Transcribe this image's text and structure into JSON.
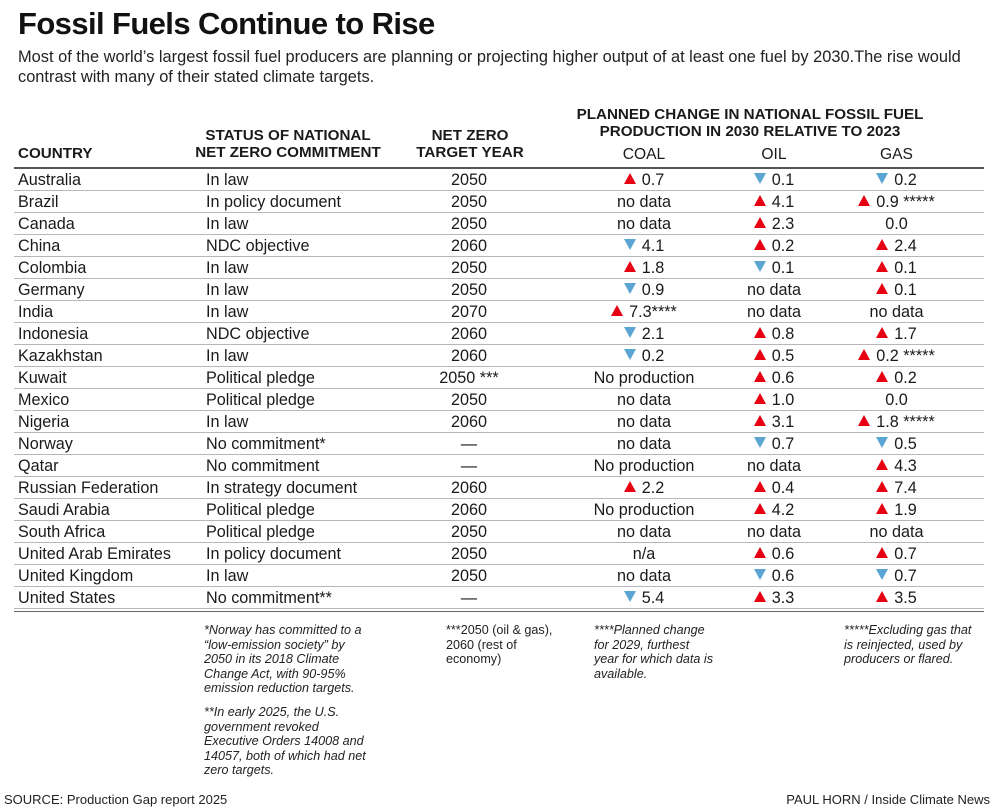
{
  "title": "Fossil Fuels Continue to Rise",
  "subtitle": "Most of the world’s largest fossil fuel producers are planning or projecting higher output of at least one fuel by 2030.The rise would contrast with many of their stated climate targets.",
  "headers": {
    "country": "COUNTRY",
    "status_line1": "STATUS OF NATIONAL",
    "status_line2": "NET ZERO COMMITMENT",
    "year_line1": "NET ZERO",
    "year_line2": "TARGET YEAR",
    "planned_line1": "PLANNED CHANGE IN NATIONAL FOSSIL FUEL",
    "planned_line2": "PRODUCTION IN 2030 RELATIVE TO 2023",
    "coal": "COAL",
    "oil": "OIL",
    "gas": "GAS"
  },
  "colors": {
    "increase": "#e60012",
    "decrease": "#5aa5d4"
  },
  "chart_data": {
    "type": "table",
    "rows": [
      {
        "country": "Australia",
        "status": "In law",
        "year": "2050",
        "coal": {
          "dir": "up",
          "value": "0.7",
          "suffix": ""
        },
        "oil": {
          "dir": "down",
          "value": "0.1",
          "suffix": ""
        },
        "gas": {
          "dir": "down",
          "value": "0.2",
          "suffix": ""
        }
      },
      {
        "country": "Brazil",
        "status": "In policy document",
        "year": "2050",
        "coal": {
          "dir": "none",
          "value": "no data",
          "suffix": ""
        },
        "oil": {
          "dir": "up",
          "value": "4.1",
          "suffix": ""
        },
        "gas": {
          "dir": "up",
          "value": "0.9",
          "suffix": " *****"
        }
      },
      {
        "country": "Canada",
        "status": "In law",
        "year": "2050",
        "coal": {
          "dir": "none",
          "value": "no data",
          "suffix": ""
        },
        "oil": {
          "dir": "up",
          "value": "2.3",
          "suffix": ""
        },
        "gas": {
          "dir": "none",
          "value": "0.0",
          "suffix": ""
        }
      },
      {
        "country": "China",
        "status": "NDC objective",
        "year": "2060",
        "coal": {
          "dir": "down",
          "value": "4.1",
          "suffix": ""
        },
        "oil": {
          "dir": "up",
          "value": "0.2",
          "suffix": ""
        },
        "gas": {
          "dir": "up",
          "value": "2.4",
          "suffix": ""
        }
      },
      {
        "country": "Colombia",
        "status": "In law",
        "year": "2050",
        "coal": {
          "dir": "up",
          "value": "1.8",
          "suffix": ""
        },
        "oil": {
          "dir": "down",
          "value": "0.1",
          "suffix": ""
        },
        "gas": {
          "dir": "up",
          "value": "0.1",
          "suffix": ""
        }
      },
      {
        "country": "Germany",
        "status": "In law",
        "year": "2050",
        "coal": {
          "dir": "down",
          "value": "0.9",
          "suffix": ""
        },
        "oil": {
          "dir": "none",
          "value": "no data",
          "suffix": ""
        },
        "gas": {
          "dir": "up",
          "value": "0.1",
          "suffix": ""
        }
      },
      {
        "country": "India",
        "status": "In law",
        "year": "2070",
        "coal": {
          "dir": "up",
          "value": "7.3",
          "suffix": "****"
        },
        "oil": {
          "dir": "none",
          "value": "no data",
          "suffix": ""
        },
        "gas": {
          "dir": "none",
          "value": "no data",
          "suffix": ""
        }
      },
      {
        "country": "Indonesia",
        "status": "NDC objective",
        "year": "2060",
        "coal": {
          "dir": "down",
          "value": "2.1",
          "suffix": ""
        },
        "oil": {
          "dir": "up",
          "value": "0.8",
          "suffix": ""
        },
        "gas": {
          "dir": "up",
          "value": "1.7",
          "suffix": ""
        }
      },
      {
        "country": "Kazakhstan",
        "status": "In law",
        "year": "2060",
        "coal": {
          "dir": "down",
          "value": "0.2",
          "suffix": ""
        },
        "oil": {
          "dir": "up",
          "value": "0.5",
          "suffix": ""
        },
        "gas": {
          "dir": "up",
          "value": "0.2",
          "suffix": " *****"
        }
      },
      {
        "country": "Kuwait",
        "status": "Political pledge",
        "year": "2050 ***",
        "coal": {
          "dir": "none",
          "value": "No production",
          "suffix": ""
        },
        "oil": {
          "dir": "up",
          "value": "0.6",
          "suffix": ""
        },
        "gas": {
          "dir": "up",
          "value": "0.2",
          "suffix": ""
        }
      },
      {
        "country": "Mexico",
        "status": "Political pledge",
        "year": "2050",
        "coal": {
          "dir": "none",
          "value": "no data",
          "suffix": ""
        },
        "oil": {
          "dir": "up",
          "value": "1.0",
          "suffix": ""
        },
        "gas": {
          "dir": "none",
          "value": "0.0",
          "suffix": ""
        }
      },
      {
        "country": "Nigeria",
        "status": "In law",
        "year": "2060",
        "coal": {
          "dir": "none",
          "value": "no data",
          "suffix": ""
        },
        "oil": {
          "dir": "up",
          "value": "3.1",
          "suffix": ""
        },
        "gas": {
          "dir": "up",
          "value": "1.8",
          "suffix": " *****"
        }
      },
      {
        "country": "Norway",
        "status": "No commitment*",
        "year": "—",
        "coal": {
          "dir": "none",
          "value": "no data",
          "suffix": ""
        },
        "oil": {
          "dir": "down",
          "value": "0.7",
          "suffix": ""
        },
        "gas": {
          "dir": "down",
          "value": "0.5",
          "suffix": ""
        }
      },
      {
        "country": "Qatar",
        "status": "No commitment",
        "year": "—",
        "coal": {
          "dir": "none",
          "value": "No production",
          "suffix": ""
        },
        "oil": {
          "dir": "none",
          "value": "no data",
          "suffix": ""
        },
        "gas": {
          "dir": "up",
          "value": "4.3",
          "suffix": ""
        }
      },
      {
        "country": "Russian Federation",
        "status": "In strategy document",
        "year": "2060",
        "coal": {
          "dir": "up",
          "value": "2.2",
          "suffix": ""
        },
        "oil": {
          "dir": "up",
          "value": "0.4",
          "suffix": ""
        },
        "gas": {
          "dir": "up",
          "value": "7.4",
          "suffix": ""
        }
      },
      {
        "country": "Saudi Arabia",
        "status": "Political pledge",
        "year": "2060",
        "coal": {
          "dir": "none",
          "value": "No production",
          "suffix": ""
        },
        "oil": {
          "dir": "up",
          "value": "4.2",
          "suffix": ""
        },
        "gas": {
          "dir": "up",
          "value": "1.9",
          "suffix": ""
        }
      },
      {
        "country": "South Africa",
        "status": "Political pledge",
        "year": "2050",
        "coal": {
          "dir": "none",
          "value": "no data",
          "suffix": ""
        },
        "oil": {
          "dir": "none",
          "value": "no data",
          "suffix": ""
        },
        "gas": {
          "dir": "none",
          "value": "no data",
          "suffix": ""
        }
      },
      {
        "country": "United Arab Emirates",
        "status": "In policy document",
        "year": "2050",
        "coal": {
          "dir": "none",
          "value": "n/a",
          "suffix": ""
        },
        "oil": {
          "dir": "up",
          "value": "0.6",
          "suffix": ""
        },
        "gas": {
          "dir": "up",
          "value": "0.7",
          "suffix": ""
        }
      },
      {
        "country": "United Kingdom",
        "status": "In law",
        "year": "2050",
        "coal": {
          "dir": "none",
          "value": "no data",
          "suffix": ""
        },
        "oil": {
          "dir": "down",
          "value": "0.6",
          "suffix": ""
        },
        "gas": {
          "dir": "down",
          "value": "0.7",
          "suffix": ""
        }
      },
      {
        "country": "United States",
        "status": "No commitment**",
        "year": "—",
        "coal": {
          "dir": "down",
          "value": "5.4",
          "suffix": ""
        },
        "oil": {
          "dir": "up",
          "value": "3.3",
          "suffix": ""
        },
        "gas": {
          "dir": "up",
          "value": "3.5",
          "suffix": ""
        }
      }
    ]
  },
  "notes": {
    "norway": "*Norway has committed to a “low-emission society” by 2050 in its 2018 Climate Change Act, with 90-95% emission reduction targets.",
    "us": "**In early 2025, the U.S. government revoked Executive Orders 14008 and 14057, both of which had net zero targets.",
    "kuwait": "***2050 (oil & gas), 2060 (rest of economy)",
    "india": "****Planned change for 2029, furthest year for which data is available.",
    "gas": "*****Excluding gas that is reinjected, used by producers or flared."
  },
  "source": "SOURCE: Production Gap report 2025",
  "credit": "PAUL HORN / Inside Climate News"
}
